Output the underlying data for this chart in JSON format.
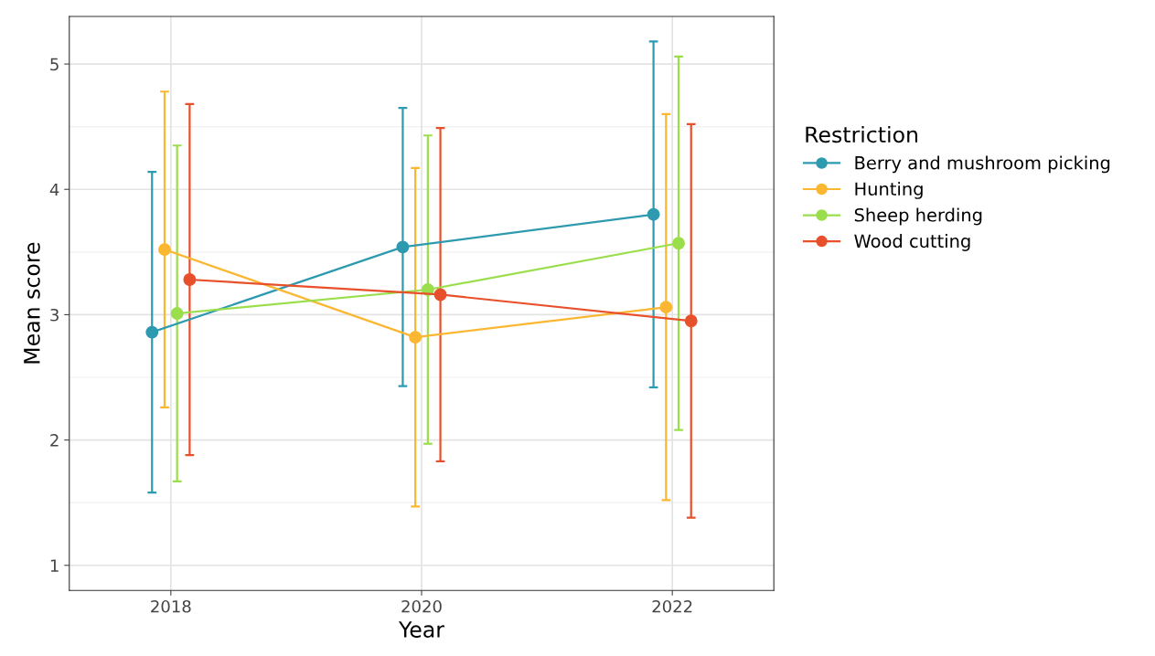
{
  "chart_data": {
    "type": "line",
    "xlabel": "Year",
    "ylabel": "Mean score",
    "legend_title": "Restriction",
    "xlim": [
      2017.19,
      2022.81
    ],
    "xticks": [
      2018,
      2020,
      2022
    ],
    "ylim": [
      0.8,
      5.38
    ],
    "yticks": [
      1,
      2,
      3,
      4,
      5
    ],
    "grid": true,
    "legend": "right",
    "marker": "circle",
    "line_style": "solid",
    "series": [
      {
        "name": "Berry and mushroom picking",
        "color": "#2e9ab0",
        "x": [
          2017.85,
          2019.85,
          2021.85
        ],
        "values": [
          2.86,
          3.54,
          3.8
        ],
        "errors": [
          [
            1.58,
            4.14
          ],
          [
            2.43,
            4.65
          ],
          [
            2.42,
            5.18
          ]
        ]
      },
      {
        "name": "Hunting",
        "color": "#fbb731",
        "x": [
          2017.95,
          2019.95,
          2021.95
        ],
        "values": [
          3.52,
          2.82,
          3.06
        ],
        "errors": [
          [
            2.26,
            4.78
          ],
          [
            1.47,
            4.17
          ],
          [
            1.52,
            4.6
          ]
        ]
      },
      {
        "name": "Sheep herding",
        "color": "#9bde4c",
        "x": [
          2018.05,
          2020.05,
          2022.05
        ],
        "values": [
          3.01,
          3.2,
          3.57
        ],
        "errors": [
          [
            1.67,
            4.35
          ],
          [
            1.97,
            4.43
          ],
          [
            2.08,
            5.06
          ]
        ]
      },
      {
        "name": "Wood cutting",
        "color": "#e8502b",
        "x": [
          2018.15,
          2020.15,
          2022.15
        ],
        "values": [
          3.28,
          3.16,
          2.95
        ],
        "errors": [
          [
            1.88,
            4.68
          ],
          [
            1.83,
            4.49
          ],
          [
            1.38,
            4.52
          ]
        ]
      }
    ]
  }
}
